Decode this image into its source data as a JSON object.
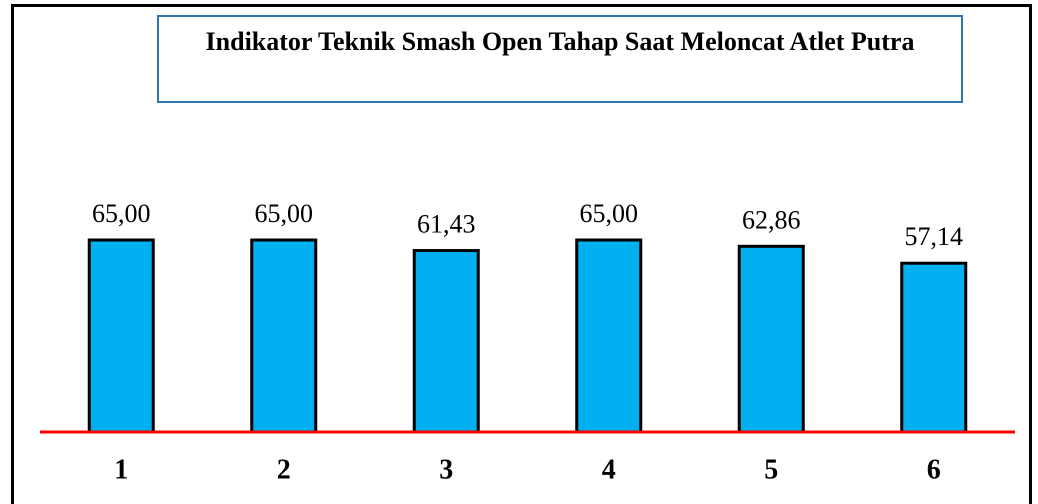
{
  "chart_data": {
    "type": "bar",
    "title": "Indikator Teknik Smash Open Tahap Saat Meloncat Atlet Putra",
    "categories": [
      "1",
      "2",
      "3",
      "4",
      "5",
      "6"
    ],
    "values": [
      65.0,
      65.0,
      61.43,
      65.0,
      62.86,
      57.14
    ],
    "value_labels": [
      "65,00",
      "65,00",
      "61,43",
      "65,00",
      "62,86",
      "57,14"
    ],
    "color": "#00b0f0"
  }
}
